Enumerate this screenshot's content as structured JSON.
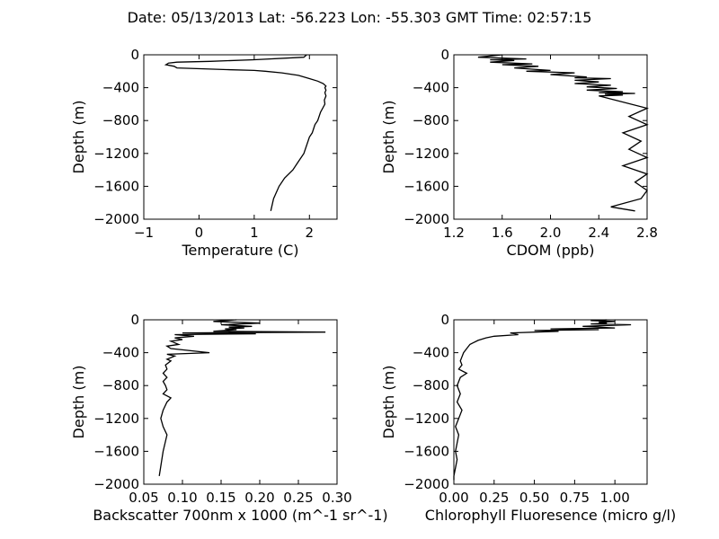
{
  "figure": {
    "suptitle": "Date: 05/13/2013  Lat:  -56.223 Lon:  -55.303  GMT Time: 02:57:15"
  },
  "chart_data": [
    {
      "type": "line",
      "xlabel": "Temperature (C)",
      "ylabel": "Depth (m)",
      "xlim": [
        -1,
        2.5
      ],
      "ylim": [
        -2000,
        0
      ],
      "xticks": [
        "−1",
        "0",
        "1",
        "2"
      ],
      "yticks": [
        "0",
        "−400",
        "−800",
        "−1200",
        "−1600",
        "−2000"
      ],
      "grid": false,
      "series": [
        {
          "x": [
            1.95,
            1.9,
            1.0,
            0.2,
            -0.4,
            -0.55,
            -0.6,
            -0.45,
            -0.4,
            0.5,
            1.0,
            1.2,
            1.5,
            1.8,
            2.0,
            2.15,
            2.25,
            2.3,
            2.28,
            2.3,
            2.28,
            2.3,
            2.27,
            2.28,
            2.2,
            2.15,
            2.1,
            2.05,
            2.0,
            1.9,
            1.8,
            1.7,
            1.55,
            1.45,
            1.35,
            1.3
          ],
          "y": [
            0,
            -30,
            -60,
            -80,
            -90,
            -100,
            -120,
            -140,
            -160,
            -180,
            -190,
            -200,
            -220,
            -250,
            -290,
            -320,
            -350,
            -380,
            -400,
            -430,
            -460,
            -500,
            -550,
            -600,
            -700,
            -800,
            -850,
            -950,
            -1000,
            -1200,
            -1300,
            -1400,
            -1500,
            -1600,
            -1750,
            -1900
          ]
        }
      ]
    },
    {
      "type": "line",
      "xlabel": "CDOM (ppb)",
      "ylabel": "Depth (m)",
      "xlim": [
        1.2,
        2.8
      ],
      "ylim": [
        -2000,
        0
      ],
      "xticks": [
        "1.2",
        "1.6",
        "2.0",
        "2.4",
        "2.8"
      ],
      "yticks": [
        "0",
        "−400",
        "−800",
        "−1200",
        "−1600",
        "−2000"
      ],
      "grid": false,
      "series": [
        {
          "x": [
            1.6,
            1.4,
            1.8,
            1.5,
            1.7,
            1.5,
            1.85,
            1.6,
            1.9,
            1.7,
            2.0,
            1.8,
            2.2,
            2.0,
            2.3,
            2.2,
            2.5,
            2.2,
            2.4,
            2.2,
            2.5,
            2.3,
            2.55,
            2.3,
            2.6,
            2.4,
            2.7,
            2.45,
            2.6,
            2.4,
            2.8,
            2.65,
            2.8,
            2.6,
            2.75,
            2.65,
            2.8,
            2.6,
            2.8,
            2.7,
            2.8,
            2.75,
            2.5,
            2.7
          ],
          "y": [
            0,
            -30,
            -50,
            -60,
            -70,
            -90,
            -110,
            -120,
            -140,
            -160,
            -190,
            -200,
            -220,
            -240,
            -270,
            -280,
            -290,
            -310,
            -330,
            -350,
            -370,
            -390,
            -410,
            -430,
            -450,
            -460,
            -470,
            -480,
            -490,
            -500,
            -650,
            -750,
            -850,
            -950,
            -1050,
            -1150,
            -1250,
            -1350,
            -1450,
            -1550,
            -1650,
            -1750,
            -1850,
            -1900
          ]
        }
      ]
    },
    {
      "type": "line",
      "xlabel": "Backscatter 700nm x 1000 (m^-1 sr^-1)",
      "ylabel": "Depth (m)",
      "xlim": [
        0.05,
        0.3
      ],
      "ylim": [
        -2000,
        0
      ],
      "xticks": [
        "0.05",
        "0.10",
        "0.15",
        "0.20",
        "0.25",
        "0.30"
      ],
      "yticks": [
        "0",
        "−400",
        "−800",
        "−1200",
        "−1600",
        "−2000"
      ],
      "grid": false,
      "series": [
        {
          "x": [
            0.17,
            0.14,
            0.2,
            0.15,
            0.19,
            0.16,
            0.18,
            0.155,
            0.17,
            0.14,
            0.285,
            0.1,
            0.195,
            0.09,
            0.115,
            0.09,
            0.1,
            0.085,
            0.095,
            0.08,
            0.085,
            0.135,
            0.08,
            0.09,
            0.08,
            0.085,
            0.078,
            0.08,
            0.075,
            0.08,
            0.075,
            0.078,
            0.08,
            0.075,
            0.085,
            0.08,
            0.075,
            0.072,
            0.075,
            0.08,
            0.075,
            0.07
          ],
          "y": [
            0,
            -20,
            -40,
            -60,
            -80,
            -90,
            -100,
            -110,
            -120,
            -140,
            -150,
            -160,
            -170,
            -180,
            -200,
            -220,
            -240,
            -260,
            -300,
            -320,
            -350,
            -400,
            -420,
            -440,
            -480,
            -500,
            -550,
            -600,
            -650,
            -700,
            -750,
            -800,
            -850,
            -900,
            -950,
            -1000,
            -1100,
            -1200,
            -1300,
            -1400,
            -1600,
            -1900
          ]
        }
      ]
    },
    {
      "type": "line",
      "xlabel": "Chlorophyll Fluoresence (micro g/l)",
      "ylabel": "Depth (m)",
      "xlim": [
        0.0,
        1.2
      ],
      "ylim": [
        -2000,
        0
      ],
      "xticks": [
        "0.00",
        "0.25",
        "0.50",
        "0.75",
        "1.00"
      ],
      "yticks": [
        "0",
        "−400",
        "−800",
        "−1200",
        "−1600",
        "−2000"
      ],
      "grid": false,
      "series": [
        {
          "x": [
            0.95,
            0.85,
            1.0,
            0.9,
            0.95,
            0.85,
            1.1,
            0.8,
            1.0,
            0.6,
            0.9,
            0.5,
            0.65,
            0.35,
            0.4,
            0.25,
            0.2,
            0.15,
            0.12,
            0.1,
            0.08,
            0.06,
            0.05,
            0.04,
            0.05,
            0.03,
            0.08,
            0.04,
            0.02,
            0.04,
            0.02,
            0.05,
            0.03,
            0.01,
            0.03,
            0.02,
            0.01,
            0.02,
            0.01,
            0.0,
            0.0
          ],
          "y": [
            0,
            -10,
            -20,
            -30,
            -40,
            -50,
            -60,
            -80,
            -100,
            -110,
            -120,
            -130,
            -140,
            -160,
            -180,
            -200,
            -220,
            -250,
            -280,
            -300,
            -350,
            -400,
            -450,
            -500,
            -550,
            -600,
            -650,
            -700,
            -800,
            -900,
            -1000,
            -1100,
            -1200,
            -1300,
            -1400,
            -1500,
            -1600,
            -1700,
            -1800,
            -1900,
            -1950
          ]
        }
      ]
    }
  ]
}
